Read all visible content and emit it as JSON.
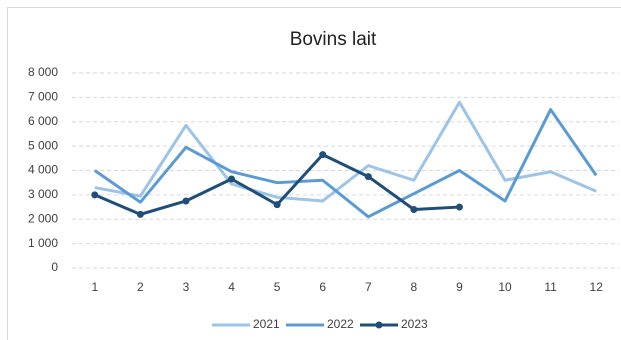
{
  "chart_data": {
    "type": "line",
    "title": "Bovins lait",
    "categories": [
      "1",
      "2",
      "3",
      "4",
      "5",
      "6",
      "7",
      "8",
      "9",
      "10",
      "11",
      "12"
    ],
    "series": [
      {
        "name": "2021",
        "color": "#9dc3e6",
        "marker": false,
        "values": [
          3300,
          2950,
          5850,
          3450,
          2900,
          2750,
          4200,
          3600,
          6800,
          3600,
          3950,
          3150
        ]
      },
      {
        "name": "2022",
        "color": "#5b9bd5",
        "marker": false,
        "values": [
          4000,
          2700,
          4950,
          3950,
          3500,
          3600,
          2100,
          3050,
          4000,
          2750,
          6500,
          3800
        ]
      },
      {
        "name": "2023",
        "color": "#1f4e79",
        "marker": true,
        "values": [
          3000,
          2200,
          2750,
          3650,
          2600,
          4650,
          3750,
          2400,
          2500,
          null,
          null,
          null
        ]
      }
    ],
    "ylim": [
      0,
      8000
    ],
    "yticks": [
      0,
      {
        "value": 1000,
        "label": "1 000"
      },
      {
        "value": 2000,
        "label": "2 000"
      },
      {
        "value": 3000,
        "label": "3 000"
      },
      {
        "value": 4000,
        "label": "4 000"
      },
      {
        "value": 5000,
        "label": "5 000"
      },
      {
        "value": 6000,
        "label": "6 000"
      },
      {
        "value": 7000,
        "label": "7 000"
      },
      {
        "value": 8000,
        "label": "8 000"
      }
    ],
    "grid": true,
    "legend": "bottom"
  }
}
